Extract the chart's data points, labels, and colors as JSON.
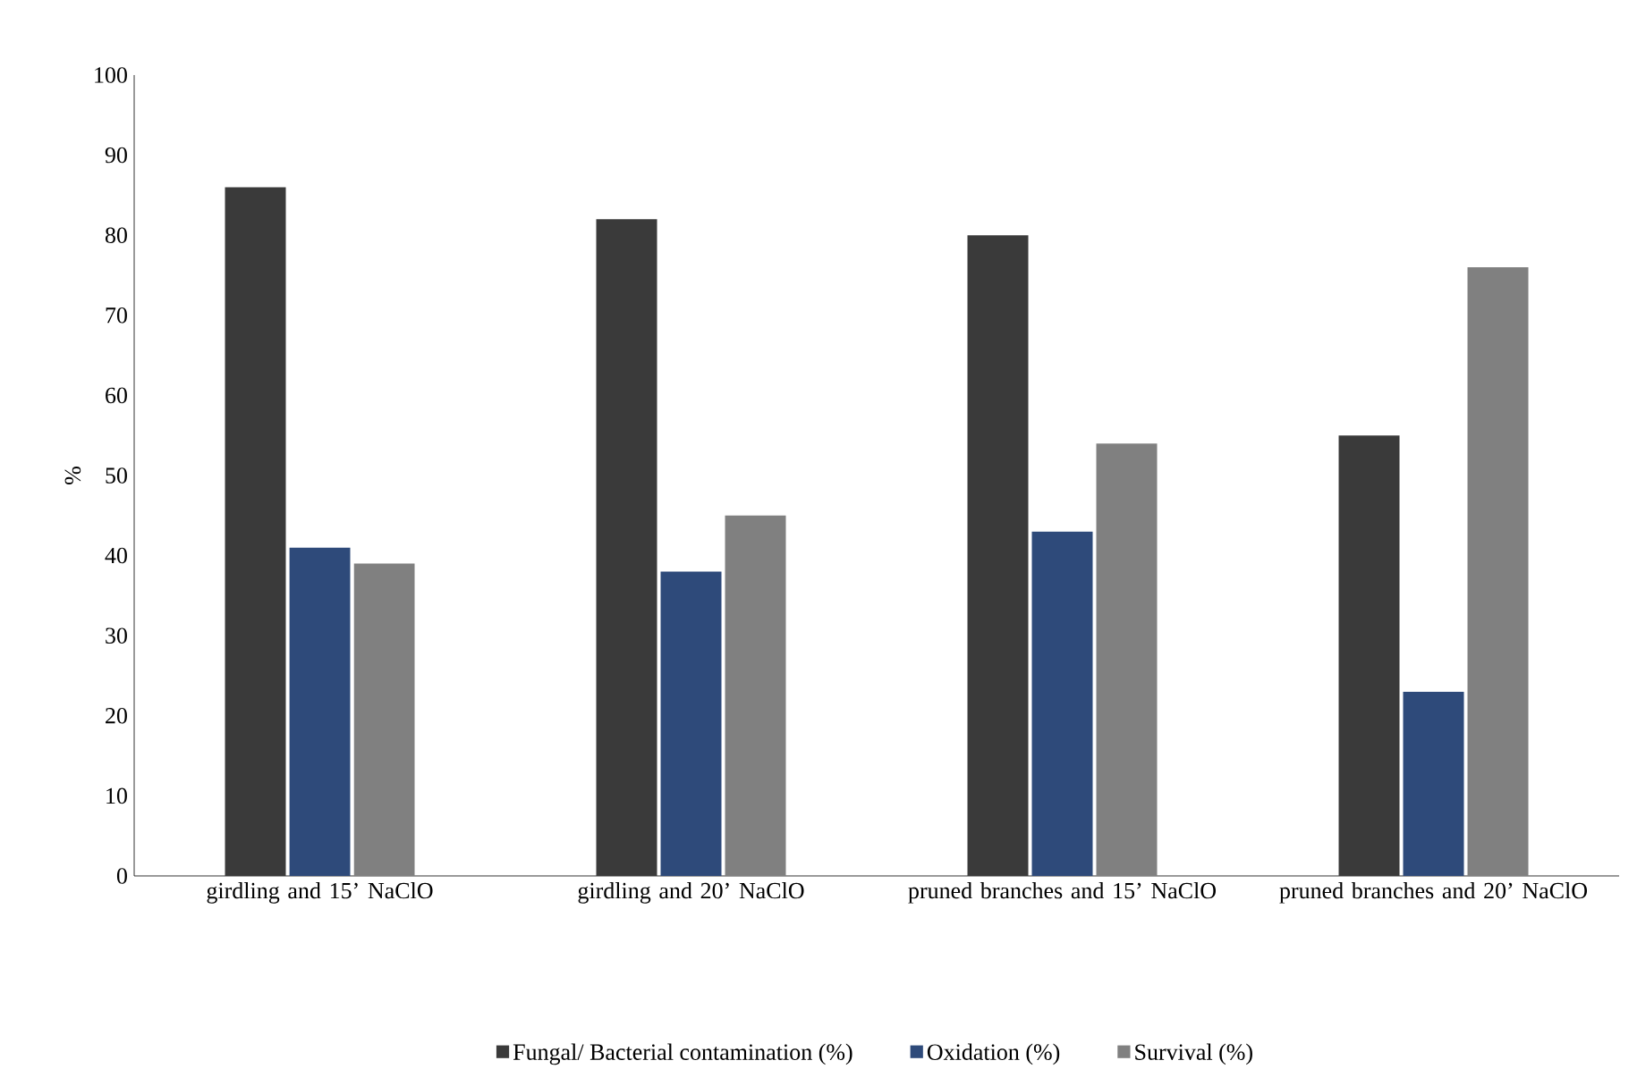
{
  "chart_data": {
    "type": "bar",
    "ylabel": "%",
    "categories": [
      "girdling and 15’ NaClO",
      "girdling and 20’ NaClO",
      "pruned branches and 15’ NaClO",
      "pruned branches and 20’ NaClO"
    ],
    "series": [
      {
        "name": "Fungal/ Bacterial contamination (%)",
        "color": "#3a3a3a",
        "values": [
          86,
          82,
          80,
          55
        ]
      },
      {
        "name": "Oxidation (%)",
        "color": "#2e4a7a",
        "values": [
          41,
          38,
          43,
          23
        ]
      },
      {
        "name": "Survival (%)",
        "color": "#808080",
        "values": [
          39,
          45,
          54,
          76
        ]
      }
    ],
    "ylim": [
      0,
      100
    ],
    "yticks": [
      0,
      10,
      20,
      30,
      40,
      50,
      60,
      70,
      80,
      90,
      100
    ],
    "grid": false,
    "legend": "bottom"
  }
}
